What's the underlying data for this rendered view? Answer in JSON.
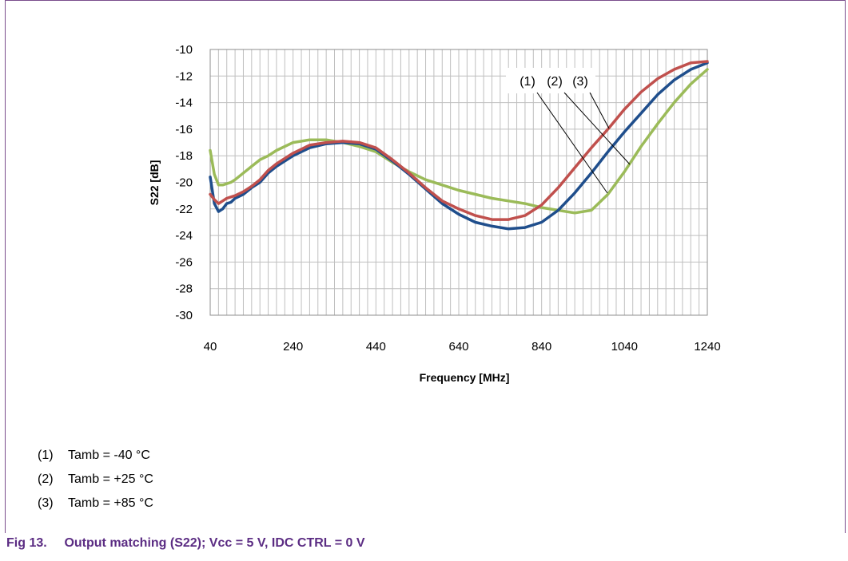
{
  "chart_data": {
    "type": "line",
    "title": "",
    "xlabel": "Frequency [MHz]",
    "ylabel": "S22 [dB]",
    "xlim": [
      40,
      1240
    ],
    "ylim": [
      -30,
      -10
    ],
    "xticks": [
      40,
      240,
      440,
      640,
      840,
      1040,
      1240
    ],
    "yticks": [
      -10,
      -12,
      -14,
      -16,
      -18,
      -20,
      -22,
      -24,
      -26,
      -28,
      -30
    ],
    "grid": true,
    "legend": "none",
    "annotation_labels": [
      "(1)",
      "(2)",
      "(3)"
    ],
    "series": [
      {
        "label": "(1)",
        "color": "#1f4e8c",
        "x": [
          40,
          50,
          60,
          70,
          80,
          90,
          100,
          120,
          140,
          160,
          180,
          200,
          240,
          280,
          320,
          360,
          400,
          440,
          480,
          520,
          560,
          600,
          640,
          680,
          720,
          760,
          800,
          840,
          880,
          920,
          960,
          1000,
          1040,
          1080,
          1120,
          1160,
          1200,
          1240
        ],
        "y": [
          -19.6,
          -21.6,
          -22.2,
          -22.0,
          -21.6,
          -21.5,
          -21.2,
          -20.9,
          -20.4,
          -20.0,
          -19.3,
          -18.8,
          -18.0,
          -17.4,
          -17.1,
          -17.0,
          -17.1,
          -17.5,
          -18.4,
          -19.4,
          -20.5,
          -21.6,
          -22.4,
          -23.0,
          -23.3,
          -23.5,
          -23.4,
          -23.0,
          -22.1,
          -20.8,
          -19.3,
          -17.7,
          -16.2,
          -14.8,
          -13.4,
          -12.3,
          -11.5,
          -11.0
        ]
      },
      {
        "label": "(2)",
        "color": "#c0504d",
        "x": [
          40,
          50,
          60,
          70,
          80,
          90,
          100,
          120,
          140,
          160,
          180,
          200,
          240,
          280,
          320,
          360,
          400,
          440,
          480,
          520,
          560,
          600,
          640,
          680,
          720,
          760,
          800,
          840,
          880,
          920,
          960,
          1000,
          1040,
          1080,
          1120,
          1160,
          1200,
          1240
        ],
        "y": [
          -20.9,
          -21.3,
          -21.6,
          -21.4,
          -21.2,
          -21.1,
          -21.0,
          -20.7,
          -20.3,
          -19.8,
          -19.1,
          -18.6,
          -17.8,
          -17.2,
          -17.0,
          -16.9,
          -17.0,
          -17.4,
          -18.3,
          -19.3,
          -20.4,
          -21.4,
          -22.0,
          -22.5,
          -22.8,
          -22.8,
          -22.5,
          -21.7,
          -20.4,
          -18.9,
          -17.4,
          -16.0,
          -14.5,
          -13.2,
          -12.2,
          -11.5,
          -11.0,
          -10.9
        ]
      },
      {
        "label": "(3)",
        "color": "#9bbb59",
        "x": [
          40,
          50,
          60,
          70,
          80,
          90,
          100,
          120,
          140,
          160,
          180,
          200,
          240,
          280,
          320,
          360,
          400,
          440,
          480,
          520,
          560,
          600,
          640,
          680,
          720,
          760,
          800,
          840,
          880,
          920,
          960,
          1000,
          1040,
          1080,
          1120,
          1160,
          1200,
          1240
        ],
        "y": [
          -17.6,
          -19.4,
          -20.2,
          -20.2,
          -20.1,
          -20.0,
          -19.8,
          -19.3,
          -18.8,
          -18.3,
          -18.0,
          -17.6,
          -17.0,
          -16.8,
          -16.8,
          -17.0,
          -17.3,
          -17.7,
          -18.5,
          -19.2,
          -19.8,
          -20.2,
          -20.6,
          -20.9,
          -21.2,
          -21.4,
          -21.6,
          -21.9,
          -22.1,
          -22.3,
          -22.1,
          -20.9,
          -19.2,
          -17.3,
          -15.6,
          -14.0,
          -12.6,
          -11.5
        ]
      }
    ]
  },
  "notes": [
    {
      "num": "(1)",
      "text": "Tamb = -40 °C"
    },
    {
      "num": "(2)",
      "text": "Tamb = +25 °C"
    },
    {
      "num": "(3)",
      "text": "Tamb = +85 °C"
    }
  ],
  "caption": {
    "fig": "Fig 13.",
    "text": "Output matching (S22); Vcc = 5 V, IDC CTRL = 0 V"
  }
}
